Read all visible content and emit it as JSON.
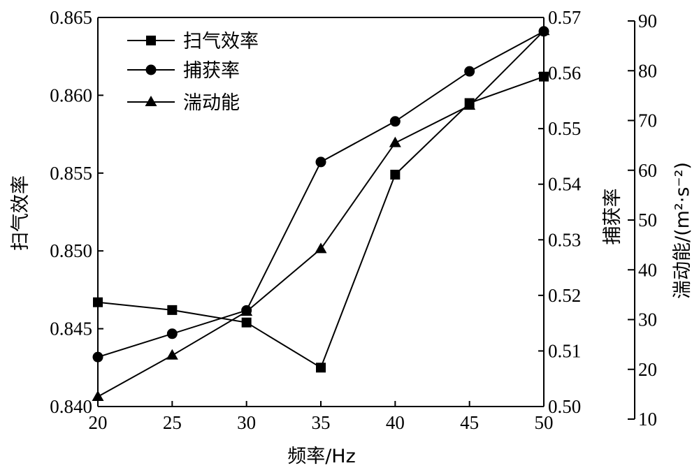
{
  "chart_data": {
    "type": "line",
    "x": [
      20,
      25,
      30,
      35,
      40,
      45,
      50
    ],
    "xlabel": "频率/Hz",
    "xlim": [
      20,
      50
    ],
    "xticks": [
      "20",
      "25",
      "30",
      "35",
      "40",
      "45",
      "50"
    ],
    "legend_position": "top-left",
    "grid": false,
    "axes": {
      "left": {
        "label": "扫气效率",
        "lim": [
          0.84,
          0.865
        ],
        "ticks": [
          "0.840",
          "0.845",
          "0.850",
          "0.855",
          "0.860",
          "0.865"
        ]
      },
      "right1": {
        "label": "捕获率",
        "lim": [
          0.5,
          0.57
        ],
        "ticks": [
          "0.50",
          "0.51",
          "0.52",
          "0.53",
          "0.54",
          "0.55",
          "0.56",
          "0.57"
        ]
      },
      "right2": {
        "label": "湍动能/(m²·s⁻²)",
        "lim": [
          10,
          90
        ],
        "ticks": [
          "10",
          "20",
          "30",
          "40",
          "50",
          "60",
          "70",
          "80",
          "90"
        ]
      }
    },
    "series": [
      {
        "name": "扫气效率",
        "axis": "left",
        "marker": "square",
        "values": [
          0.8467,
          0.8462,
          0.8454,
          0.8425,
          0.8549,
          0.8595,
          0.8612
        ]
      },
      {
        "name": "捕获率",
        "axis": "right1",
        "marker": "circle",
        "values": [
          0.5089,
          0.5131,
          0.5173,
          0.544,
          0.5513,
          0.5603,
          0.5675
        ]
      },
      {
        "name": "湍动能",
        "axis": "right2",
        "marker": "triangle",
        "values": [
          14.5,
          22.8,
          31.6,
          44.2,
          65.5,
          73.0,
          88.0
        ]
      }
    ]
  }
}
